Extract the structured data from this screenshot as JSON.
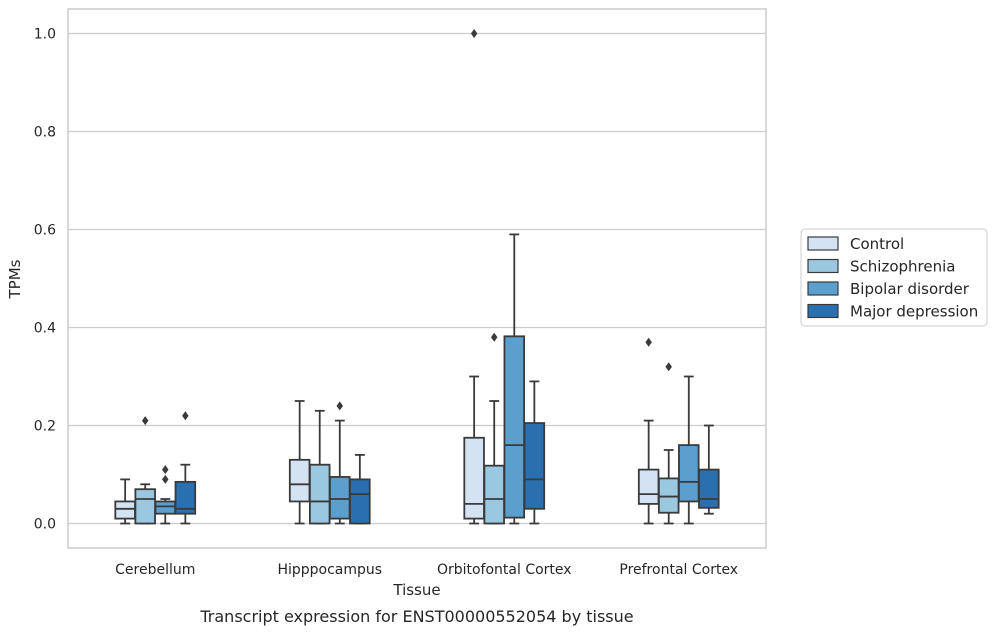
{
  "caption": "Transcript expression for ENST00000552054 by tissue",
  "chart_data": {
    "type": "box",
    "xlabel": "Tissue",
    "ylabel": "TPMs",
    "ylim": [
      -0.05,
      1.05
    ],
    "yticks": [
      "0.0",
      "0.2",
      "0.4",
      "0.6",
      "0.8",
      "1.0"
    ],
    "grid": "horizontal",
    "legend_position": "right",
    "categories": [
      "Cerebellum",
      "Hipppocampus",
      "Orbitofontal Cortex",
      "Prefrontal Cortex"
    ],
    "series": [
      {
        "name": "Control",
        "color": "#d3e3f3",
        "boxes": [
          {
            "whislo": 0.0,
            "q1": 0.01,
            "med": 0.03,
            "q3": 0.045,
            "whishi": 0.09,
            "fliers": []
          },
          {
            "whislo": 0.0,
            "q1": 0.045,
            "med": 0.08,
            "q3": 0.13,
            "whishi": 0.25,
            "fliers": []
          },
          {
            "whislo": 0.0,
            "q1": 0.01,
            "med": 0.04,
            "q3": 0.175,
            "whishi": 0.3,
            "fliers": [
              1.0
            ]
          },
          {
            "whislo": 0.0,
            "q1": 0.04,
            "med": 0.06,
            "q3": 0.11,
            "whishi": 0.21,
            "fliers": [
              0.37
            ]
          }
        ]
      },
      {
        "name": "Schizophrenia",
        "color": "#9ac8e0",
        "boxes": [
          {
            "whislo": 0.0,
            "q1": 0.0,
            "med": 0.05,
            "q3": 0.07,
            "whishi": 0.08,
            "fliers": [
              0.21
            ]
          },
          {
            "whislo": 0.0,
            "q1": 0.0,
            "med": 0.045,
            "q3": 0.12,
            "whishi": 0.23,
            "fliers": []
          },
          {
            "whislo": 0.0,
            "q1": 0.0,
            "med": 0.05,
            "q3": 0.118,
            "whishi": 0.25,
            "fliers": [
              0.38
            ]
          },
          {
            "whislo": 0.0,
            "q1": 0.022,
            "med": 0.055,
            "q3": 0.092,
            "whishi": 0.15,
            "fliers": [
              0.32
            ]
          }
        ]
      },
      {
        "name": "Bipolar disorder",
        "color": "#5a9fcd",
        "boxes": [
          {
            "whislo": 0.0,
            "q1": 0.02,
            "med": 0.035,
            "q3": 0.045,
            "whishi": 0.05,
            "fliers": [
              0.09,
              0.11
            ]
          },
          {
            "whislo": 0.0,
            "q1": 0.01,
            "med": 0.05,
            "q3": 0.095,
            "whishi": 0.21,
            "fliers": [
              0.24
            ]
          },
          {
            "whislo": 0.0,
            "q1": 0.012,
            "med": 0.16,
            "q3": 0.382,
            "whishi": 0.59,
            "fliers": []
          },
          {
            "whislo": 0.0,
            "q1": 0.045,
            "med": 0.085,
            "q3": 0.16,
            "whishi": 0.3,
            "fliers": []
          }
        ]
      },
      {
        "name": "Major depression",
        "color": "#2a6fb0",
        "boxes": [
          {
            "whislo": 0.0,
            "q1": 0.02,
            "med": 0.03,
            "q3": 0.085,
            "whishi": 0.12,
            "fliers": [
              0.22
            ]
          },
          {
            "whislo": 0.0,
            "q1": 0.0,
            "med": 0.06,
            "q3": 0.09,
            "whishi": 0.14,
            "fliers": []
          },
          {
            "whislo": 0.0,
            "q1": 0.03,
            "med": 0.09,
            "q3": 0.205,
            "whishi": 0.29,
            "fliers": []
          },
          {
            "whislo": 0.02,
            "q1": 0.032,
            "med": 0.05,
            "q3": 0.11,
            "whishi": 0.2,
            "fliers": []
          }
        ]
      }
    ]
  }
}
